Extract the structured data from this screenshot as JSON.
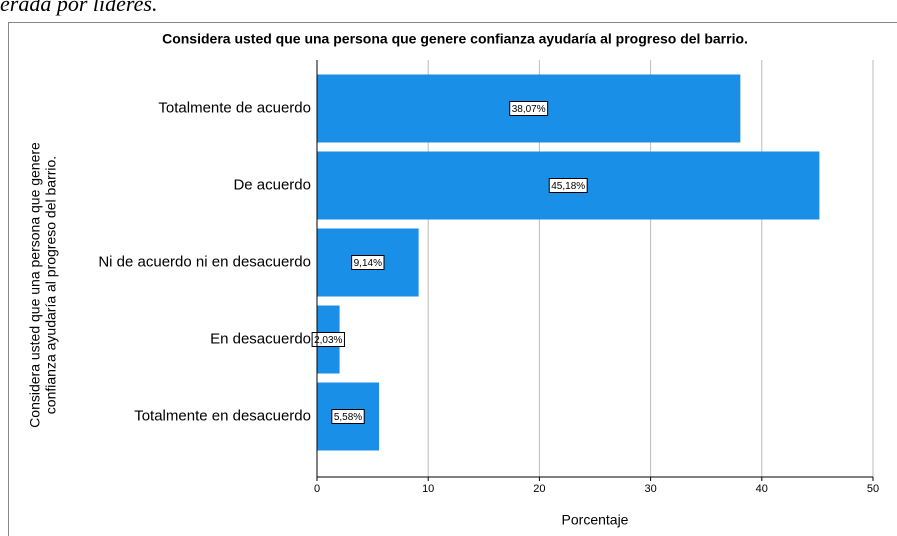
{
  "caption": "erada por líderes.",
  "chart_data": {
    "type": "barh",
    "title": "Considera usted que una persona que genere confianza ayudaría al progreso del barrio.",
    "y_label": [
      "Considera usted que una persona que genere",
      "confianza ayudaría al progreso del barrio."
    ],
    "x_label": "Porcentaje",
    "categories": [
      "Totalmente de acuerdo",
      "De acuerdo",
      "Ni de acuerdo ni en desacuerdo",
      "En desacuerdo",
      "Totalmente en desacuerdo"
    ],
    "values": [
      38.07,
      45.18,
      9.14,
      2.03,
      5.58
    ],
    "value_labels": [
      "38,07%",
      "45,18%",
      "9,14%",
      "2,03%",
      "5,58%"
    ],
    "color": "#1a8fe8",
    "xlim": [
      0,
      50
    ],
    "xticks": [
      0,
      10,
      20,
      30,
      40,
      50
    ],
    "grid": true
  }
}
